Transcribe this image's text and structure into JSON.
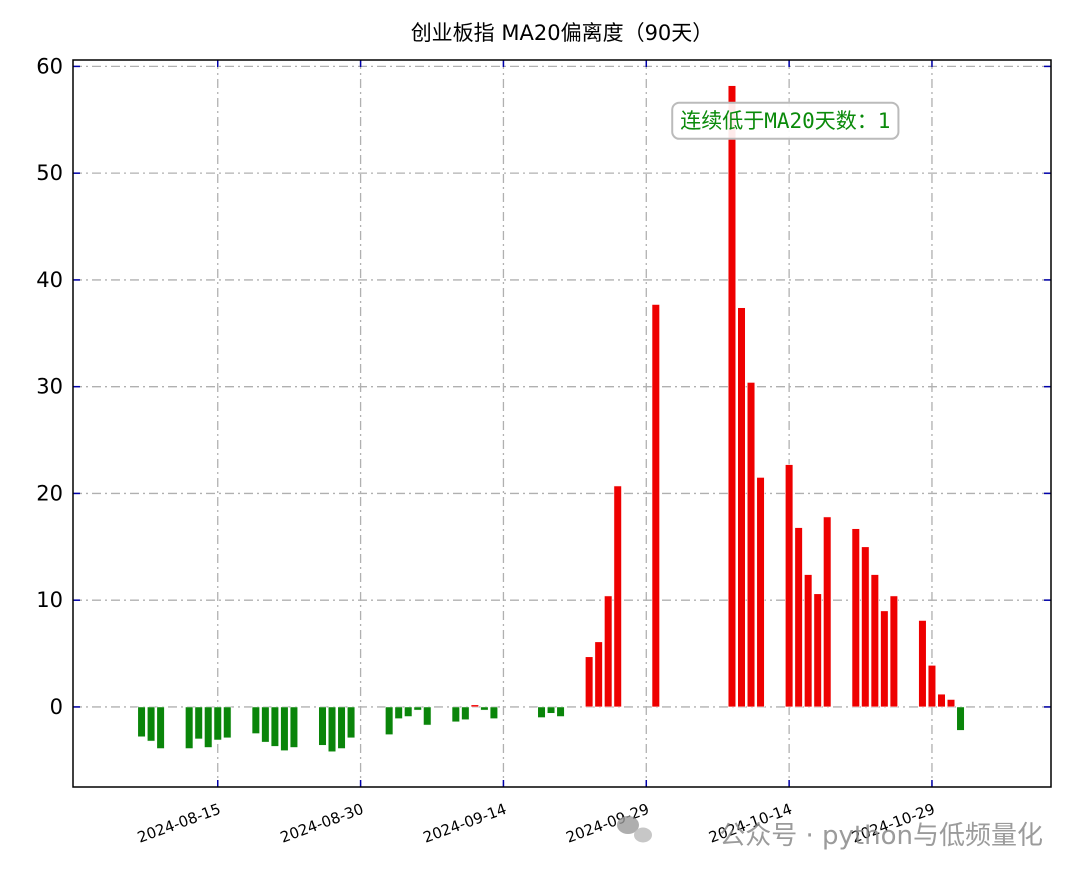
{
  "chart_data": {
    "type": "bar",
    "title": "创业板指 MA20偏离度（90天）",
    "xlabel": "",
    "ylabel": "",
    "ylim": [
      -7.5,
      60.6
    ],
    "yticks": [
      0,
      10,
      20,
      30,
      40,
      50,
      60
    ],
    "xtick_labels": [
      "2024-08-15",
      "2024-08-30",
      "2024-09-14",
      "2024-09-29",
      "2024-10-14",
      "2024-10-29"
    ],
    "grid": true,
    "positive_color": "#ee0000",
    "negative_color": "#0a850a",
    "annotation": {
      "text": "连续低于MA20天数：1",
      "color": "#0a8a0a",
      "date": "2024-10-01",
      "y": 55
    },
    "watermark": "公众号 · python与低频量化",
    "bars": [
      {
        "date": "2024-08-07",
        "value": -2.8
      },
      {
        "date": "2024-08-08",
        "value": -3.2
      },
      {
        "date": "2024-08-09",
        "value": -3.9
      },
      {
        "date": "2024-08-12",
        "value": -3.9
      },
      {
        "date": "2024-08-13",
        "value": -3.0
      },
      {
        "date": "2024-08-14",
        "value": -3.8
      },
      {
        "date": "2024-08-15",
        "value": -3.1
      },
      {
        "date": "2024-08-16",
        "value": -2.9
      },
      {
        "date": "2024-08-19",
        "value": -2.5
      },
      {
        "date": "2024-08-20",
        "value": -3.3
      },
      {
        "date": "2024-08-21",
        "value": -3.7
      },
      {
        "date": "2024-08-22",
        "value": -4.1
      },
      {
        "date": "2024-08-23",
        "value": -3.8
      },
      {
        "date": "2024-08-26",
        "value": -3.6
      },
      {
        "date": "2024-08-27",
        "value": -4.2
      },
      {
        "date": "2024-08-28",
        "value": -3.9
      },
      {
        "date": "2024-08-29",
        "value": -2.9
      },
      {
        "date": "2024-09-02",
        "value": -2.6
      },
      {
        "date": "2024-09-03",
        "value": -1.1
      },
      {
        "date": "2024-09-04",
        "value": -0.9
      },
      {
        "date": "2024-09-05",
        "value": -0.3
      },
      {
        "date": "2024-09-06",
        "value": -1.7
      },
      {
        "date": "2024-09-09",
        "value": -1.4
      },
      {
        "date": "2024-09-10",
        "value": -1.2
      },
      {
        "date": "2024-09-11",
        "value": 0.2
      },
      {
        "date": "2024-09-12",
        "value": -0.3
      },
      {
        "date": "2024-09-13",
        "value": -1.1
      },
      {
        "date": "2024-09-18",
        "value": -1.0
      },
      {
        "date": "2024-09-19",
        "value": -0.6
      },
      {
        "date": "2024-09-20",
        "value": -0.9
      },
      {
        "date": "2024-09-23",
        "value": 4.7
      },
      {
        "date": "2024-09-24",
        "value": 6.1
      },
      {
        "date": "2024-09-25",
        "value": 10.4
      },
      {
        "date": "2024-09-26",
        "value": 20.7
      },
      {
        "date": "2024-09-30",
        "value": 37.7
      },
      {
        "date": "2024-10-08",
        "value": 58.2
      },
      {
        "date": "2024-10-09",
        "value": 37.4
      },
      {
        "date": "2024-10-10",
        "value": 30.4
      },
      {
        "date": "2024-10-11",
        "value": 21.5
      },
      {
        "date": "2024-10-14",
        "value": 22.7
      },
      {
        "date": "2024-10-15",
        "value": 16.8
      },
      {
        "date": "2024-10-16",
        "value": 12.4
      },
      {
        "date": "2024-10-17",
        "value": 10.6
      },
      {
        "date": "2024-10-18",
        "value": 17.8
      },
      {
        "date": "2024-10-21",
        "value": 16.7
      },
      {
        "date": "2024-10-22",
        "value": 15.0
      },
      {
        "date": "2024-10-23",
        "value": 12.4
      },
      {
        "date": "2024-10-24",
        "value": 9.0
      },
      {
        "date": "2024-10-25",
        "value": 10.4
      },
      {
        "date": "2024-10-28",
        "value": 8.1
      },
      {
        "date": "2024-10-29",
        "value": 3.9
      },
      {
        "date": "2024-10-30",
        "value": 1.2
      },
      {
        "date": "2024-10-31",
        "value": 0.7
      },
      {
        "date": "2024-11-01",
        "value": -2.2
      }
    ]
  }
}
